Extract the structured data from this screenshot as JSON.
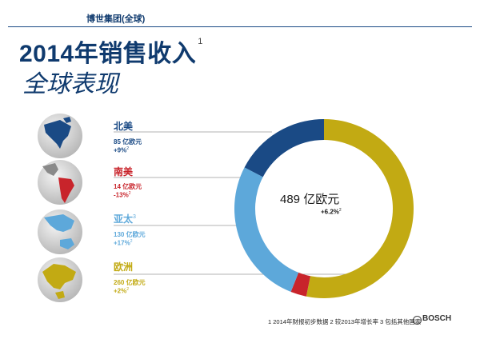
{
  "header": {
    "group": "博世集团(全球)"
  },
  "title": {
    "main": "2014年销售收入",
    "sup": "1",
    "sub": "全球表现"
  },
  "colors": {
    "north_america": "#1a4a85",
    "south_america": "#c8242b",
    "asia_pacific": "#5da8da",
    "europe": "#c2aa13"
  },
  "regions": [
    {
      "name": "北美",
      "name_sup": "",
      "value": "85 亿欧元",
      "growth": "+9%",
      "growth_sup": "2",
      "icon": "globe-north-america-icon"
    },
    {
      "name": "南美",
      "name_sup": "",
      "value": "14 亿欧元",
      "growth": "-13%",
      "growth_sup": "2",
      "icon": "globe-south-america-icon"
    },
    {
      "name": "亚太",
      "name_sup": "3",
      "value": "130 亿欧元",
      "growth": "+17%",
      "growth_sup": "2",
      "icon": "globe-asia-pacific-icon"
    },
    {
      "name": "欧洲",
      "name_sup": "",
      "value": "260 亿欧元",
      "growth": "+2%",
      "growth_sup": "2",
      "icon": "globe-europe-icon"
    }
  ],
  "chart_data": {
    "type": "pie",
    "donut": true,
    "categories": [
      "欧洲",
      "南美",
      "亚太",
      "北美"
    ],
    "values": [
      260,
      14,
      130,
      85
    ],
    "unit": "亿欧元",
    "total_label": "489 亿欧元",
    "total_growth": "+6.2%",
    "total_growth_sup": "2"
  },
  "footer": {
    "footnote": "1  2014年财报初步数据  2  较2013年增长率  3  包括其他国家",
    "brand": "BOSCH"
  }
}
